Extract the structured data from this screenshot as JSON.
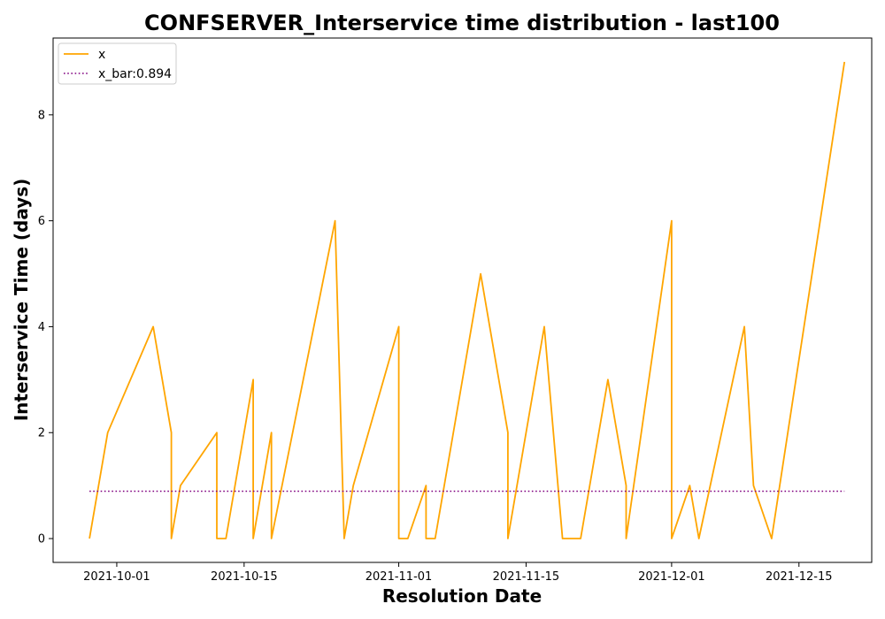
{
  "chart_data": {
    "type": "line",
    "title": "CONFSERVER_Interservice time distribution - last100",
    "xlabel": "Resolution Date",
    "ylabel": "Interservice Time (days)",
    "x_is_date": true,
    "xlim": [
      "2021-09-24",
      "2021-12-23"
    ],
    "ylim": [
      -0.45,
      9.45
    ],
    "x_ticks": [
      "2021-10-01",
      "2021-10-15",
      "2021-11-01",
      "2021-11-15",
      "2021-12-01",
      "2021-12-15"
    ],
    "y_ticks": [
      0,
      2,
      4,
      6,
      8
    ],
    "legend_position": "top-left",
    "grid": false,
    "series": [
      {
        "name": "x",
        "style": "solid",
        "color": "#ffa500",
        "points": [
          [
            "2021-09-28",
            0
          ],
          [
            "2021-09-30",
            2
          ],
          [
            "2021-10-05",
            4
          ],
          [
            "2021-10-07",
            2
          ],
          [
            "2021-10-07",
            0
          ],
          [
            "2021-10-08",
            1
          ],
          [
            "2021-10-12",
            2
          ],
          [
            "2021-10-12",
            0
          ],
          [
            "2021-10-13",
            0
          ],
          [
            "2021-10-16",
            3
          ],
          [
            "2021-10-16",
            0
          ],
          [
            "2021-10-18",
            2
          ],
          [
            "2021-10-18",
            0
          ],
          [
            "2021-10-25",
            6
          ],
          [
            "2021-10-26",
            0
          ],
          [
            "2021-10-27",
            1
          ],
          [
            "2021-11-01",
            4
          ],
          [
            "2021-11-01",
            0
          ],
          [
            "2021-11-02",
            0
          ],
          [
            "2021-11-04",
            1
          ],
          [
            "2021-11-04",
            0
          ],
          [
            "2021-11-05",
            0
          ],
          [
            "2021-11-10",
            5
          ],
          [
            "2021-11-13",
            2
          ],
          [
            "2021-11-13",
            0
          ],
          [
            "2021-11-17",
            4
          ],
          [
            "2021-11-19",
            0
          ],
          [
            "2021-11-21",
            0
          ],
          [
            "2021-11-24",
            3
          ],
          [
            "2021-11-26",
            1
          ],
          [
            "2021-11-26",
            0
          ],
          [
            "2021-12-01",
            6
          ],
          [
            "2021-12-01",
            0
          ],
          [
            "2021-12-03",
            1
          ],
          [
            "2021-12-04",
            0
          ],
          [
            "2021-12-09",
            4
          ],
          [
            "2021-12-10",
            1
          ],
          [
            "2021-12-12",
            0
          ],
          [
            "2021-12-20",
            9
          ]
        ]
      },
      {
        "name": "x_bar:0.894",
        "style": "dotted",
        "color": "#800080",
        "points": [
          [
            "2021-09-28",
            0.894
          ],
          [
            "2021-12-20",
            0.894
          ]
        ]
      }
    ]
  }
}
